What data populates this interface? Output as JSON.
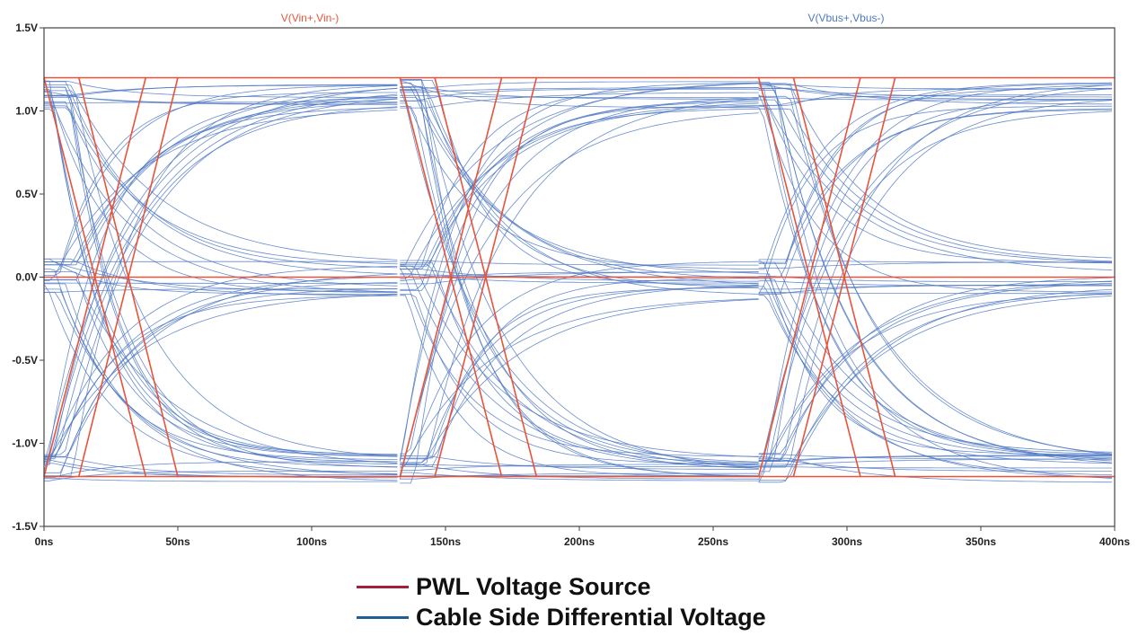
{
  "chart_data": {
    "type": "line",
    "title": "",
    "xlabel": "",
    "ylabel": "",
    "xlim": [
      0,
      400
    ],
    "ylim": [
      -1.5,
      1.5
    ],
    "x_ticks": [
      "0ns",
      "50ns",
      "100ns",
      "150ns",
      "200ns",
      "250ns",
      "300ns",
      "350ns",
      "400ns"
    ],
    "y_ticks": [
      "1.5V",
      "1.0V",
      "0.5V",
      "0.0V",
      "-0.5V",
      "-1.0V",
      "-1.5V"
    ],
    "trace_titles": [
      "V(Vin+,Vin-)",
      "V(Vbus+,Vbus-)"
    ],
    "series": [
      {
        "name": "PWL Voltage Source",
        "trace": "V(Vin+,Vin-)",
        "color": "#e8533a",
        "levels": [
          -1.2,
          0.0,
          1.2
        ],
        "transition_times_ns": [
          0,
          13,
          38,
          50,
          133,
          146,
          171,
          184,
          267,
          280,
          305,
          318
        ]
      },
      {
        "name": "Cable Side Differential Voltage",
        "trace": "V(Vbus+,Vbus-)",
        "color": "#4f78c4",
        "levels": [
          -1.15,
          0.0,
          1.1
        ],
        "transition_times_ns": [
          0,
          13,
          38,
          50,
          133,
          146,
          171,
          184,
          267,
          280,
          305,
          318
        ]
      }
    ],
    "legend_position": "bottom-center",
    "grid": false
  },
  "legend": {
    "items": [
      {
        "label": "PWL Voltage Source",
        "color": "#a51f3c"
      },
      {
        "label": "Cable Side Differential Voltage",
        "color": "#1e5f9a"
      }
    ]
  }
}
